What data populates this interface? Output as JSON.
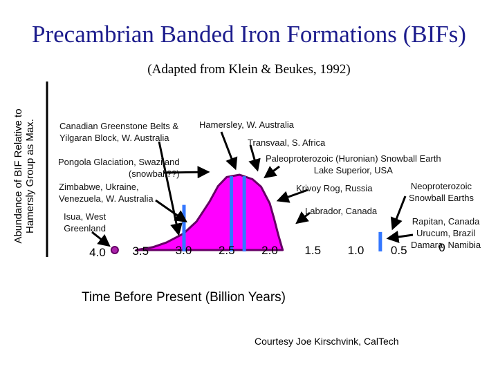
{
  "title": "Precambrian Banded Iron Formations (BIFs)",
  "subtitle": "(Adapted from Klein & Beukes, 1992)",
  "footer": "Courtesy Joe Kirschvink, CalTech",
  "colors": {
    "fill": "#ff00ff",
    "outline": "#660066",
    "marker": "#3377ff",
    "axis": "#000000"
  },
  "chart_data": {
    "type": "area",
    "xlabel": "Time Before Present (Billion Years)",
    "ylabel": "Abundance of BIF Relative to Hamersly Group as Max.",
    "x_reversed": true,
    "xlim": [
      4.3,
      0
    ],
    "xticks": [
      "4.0",
      "3.5",
      "3.0",
      "2.5",
      "2.0",
      "1.5",
      "1.0",
      "0.5",
      "0"
    ],
    "ylim": [
      0,
      1
    ],
    "curve": {
      "x": [
        3.55,
        3.35,
        3.2,
        3.0,
        2.85,
        2.7,
        2.6,
        2.5,
        2.35,
        2.2,
        2.1,
        2.0,
        1.95,
        1.9,
        1.85
      ],
      "y": [
        0.0,
        0.04,
        0.1,
        0.22,
        0.38,
        0.64,
        0.85,
        0.97,
        1.0,
        0.94,
        0.84,
        0.62,
        0.42,
        0.2,
        0.0
      ]
    },
    "isua_point": {
      "x": 3.8,
      "y": 0.0
    },
    "markers": [
      {
        "x": 3.0,
        "y_top": 0.6
      },
      {
        "x": 2.45,
        "y_top": 0.98
      },
      {
        "x": 2.3,
        "y_top": 0.98
      },
      {
        "x": 0.72,
        "y_top": 0.24
      }
    ],
    "annotations": [
      {
        "text": "Canadian Greenstone Belts &",
        "line2": "Yilgaran Block, W. Australia"
      },
      {
        "text": "Hamersley, W. Australia"
      },
      {
        "text": "Transvaal, S. Africa"
      },
      {
        "text": "Pongola Glaciation, Swaziland",
        "line2": "(snowball??)"
      },
      {
        "text": "Paleoproterozoic (Huronian) Snowball Earth",
        "line2": "Lake Superior, USA"
      },
      {
        "text": "Zimbabwe, Ukraine,",
        "line2": "Venezuela, W. Australia"
      },
      {
        "text": "Krivoy Rog, Russia"
      },
      {
        "text": "Neoproterozoic",
        "line2": "Snowball Earths"
      },
      {
        "text": "Labrador, Canada"
      },
      {
        "text": "Isua, West",
        "line2": "Greenland"
      },
      {
        "text": "Rapitan, Canada",
        "line2": "Urucum, Brazil",
        "line3": "Damara, Namibia"
      }
    ]
  }
}
